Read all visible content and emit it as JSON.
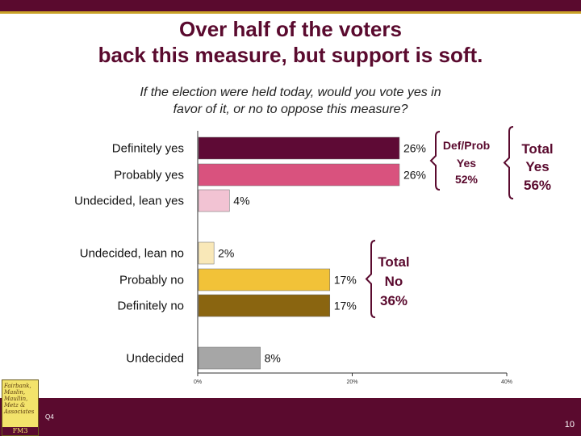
{
  "slide": {
    "title_line1": "Over half of the voters",
    "title_line2": "back this measure, but support is soft.",
    "subtitle_line1": "If the election were held today, would you vote yes in",
    "subtitle_line2": "favor of it, or no to oppose this measure?",
    "question_id": "Q4",
    "page_number": "10",
    "logo_lines": [
      "Fairbank,",
      "Maslin,",
      "Maullin,",
      "Metz &",
      "Associates"
    ],
    "logo_footer": "FM3"
  },
  "colors": {
    "brand": "#5a0a2e",
    "accent": "#c9a227"
  },
  "groups": [
    {
      "lines": [
        "Def/Prob",
        "Yes",
        "52%"
      ]
    },
    {
      "lines": [
        "Total",
        "Yes",
        "56%"
      ]
    },
    {
      "lines": [
        "Total",
        "No",
        "36%"
      ]
    }
  ],
  "chart_data": {
    "type": "bar",
    "orientation": "horizontal",
    "categories": [
      "Definitely yes",
      "Probably yes",
      "Undecided, lean yes",
      "Undecided, lean no",
      "Probably no",
      "Definitely no",
      "Undecided"
    ],
    "values": [
      26,
      26,
      4,
      2,
      17,
      17,
      8
    ],
    "value_labels": [
      "26%",
      "26%",
      "4%",
      "2%",
      "17%",
      "17%",
      "8%"
    ],
    "colors": [
      "#5e0a35",
      "#d9527e",
      "#f2c3d3",
      "#f9e8b8",
      "#f2c238",
      "#8a6510",
      "#a6a6a6"
    ],
    "xlim": [
      0,
      40
    ],
    "ticks": [
      0,
      20,
      40
    ],
    "tick_labels": [
      "0%",
      "20%",
      "40%"
    ],
    "grid": false
  }
}
